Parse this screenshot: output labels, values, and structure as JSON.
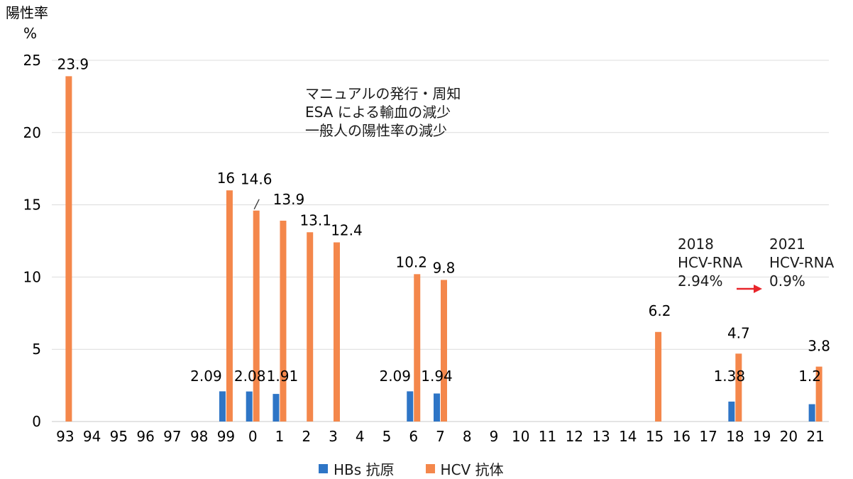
{
  "chart_data": {
    "type": "bar",
    "ylabel": "陽性率",
    "yunit": "%",
    "ylim": [
      0,
      25
    ],
    "yticks": [
      0,
      5,
      10,
      15,
      20,
      25
    ],
    "grid": true,
    "categories": [
      "93",
      "94",
      "95",
      "96",
      "97",
      "98",
      "99",
      "0",
      "1",
      "2",
      "3",
      "4",
      "5",
      "6",
      "7",
      "8",
      "9",
      "10",
      "11",
      "12",
      "13",
      "14",
      "15",
      "16",
      "17",
      "18",
      "19",
      "20",
      "21"
    ],
    "series": [
      {
        "name": "HBs 抗原",
        "color": "#2e75c6",
        "values": [
          null,
          null,
          null,
          null,
          null,
          null,
          2.09,
          2.08,
          1.91,
          null,
          null,
          null,
          null,
          2.09,
          1.94,
          null,
          null,
          null,
          null,
          null,
          null,
          null,
          null,
          null,
          null,
          1.38,
          null,
          null,
          1.2
        ],
        "labels": [
          null,
          null,
          null,
          null,
          null,
          null,
          "2.09",
          "2.08",
          "1.91",
          null,
          null,
          null,
          null,
          "2.09",
          "1.94",
          null,
          null,
          null,
          null,
          null,
          null,
          null,
          null,
          null,
          null,
          "1.38",
          null,
          null,
          "1.2"
        ]
      },
      {
        "name": "HCV 抗体",
        "color": "#f4874b",
        "values": [
          23.9,
          null,
          null,
          null,
          null,
          null,
          16,
          14.6,
          13.9,
          13.1,
          12.4,
          null,
          null,
          10.2,
          9.8,
          null,
          null,
          null,
          null,
          null,
          null,
          null,
          6.2,
          null,
          null,
          4.7,
          null,
          null,
          3.8
        ],
        "labels": [
          "23.9",
          null,
          null,
          null,
          null,
          null,
          "16",
          "14.6",
          "13.9",
          "13.1",
          "12.4",
          null,
          null,
          "10.2",
          "9.8",
          null,
          null,
          null,
          null,
          null,
          null,
          null,
          "6.2",
          null,
          null,
          "4.7",
          null,
          null,
          "3.8"
        ]
      }
    ],
    "annotations": {
      "notes": [
        "マニュアルの発行・周知",
        "ESA による輸血の減少",
        "一般人の陽性率の減少"
      ],
      "rna_2018": [
        "2018",
        "HCV-RNA",
        "2.94%"
      ],
      "rna_2021": [
        "2021",
        "HCV-RNA",
        "0.9%"
      ],
      "arrow_color": "#e8252b"
    },
    "legend": "bottom"
  }
}
